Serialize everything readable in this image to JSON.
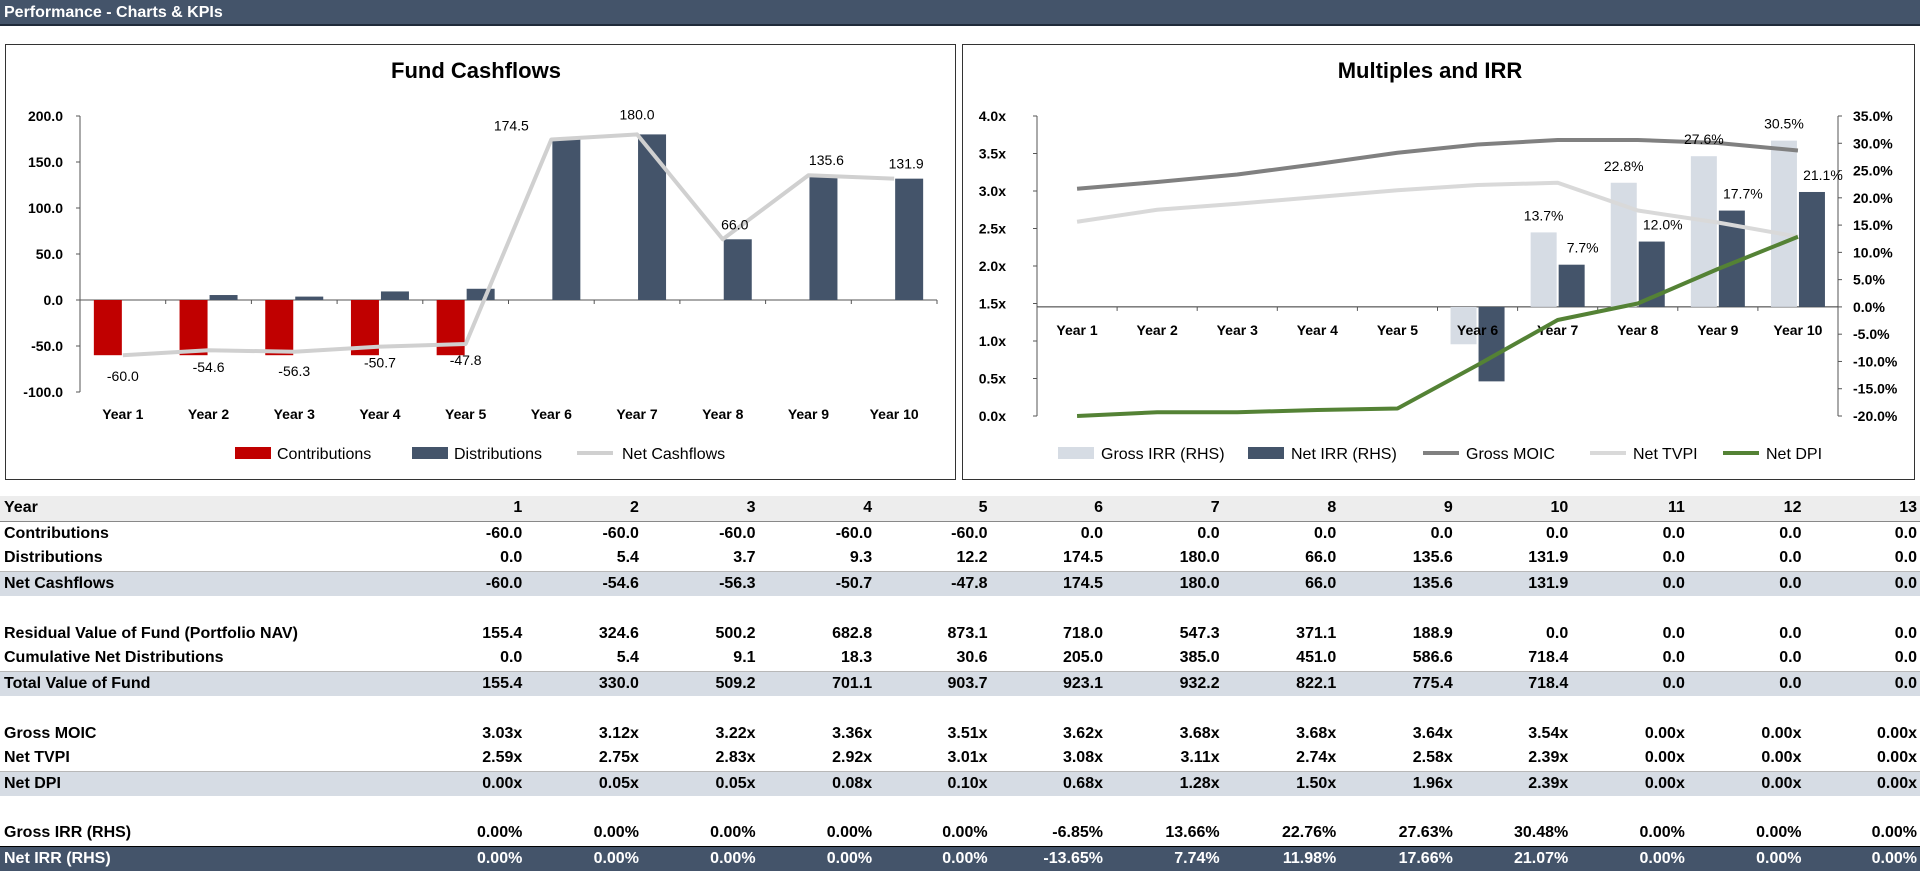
{
  "window": {
    "title": "Performance - Charts & KPIs"
  },
  "colors": {
    "header_bg": "#44546a",
    "contributions": "#c00000",
    "distributions": "#44546a",
    "net_cashflows": "#d0d0d0",
    "gross_irr": "#d6dce4",
    "net_irr": "#44546a",
    "gross_moic": "#808080",
    "net_tvpi": "#d9d9d9",
    "net_dpi": "#548235",
    "shade_row": "#d6dce4"
  },
  "chart_data": [
    {
      "type": "bar",
      "title": "Fund Cashflows",
      "categories": [
        "Year 1",
        "Year 2",
        "Year 3",
        "Year 4",
        "Year 5",
        "Year 6",
        "Year 7",
        "Year 8",
        "Year 9",
        "Year 10"
      ],
      "ylim": [
        -100,
        200
      ],
      "yticks": [
        "-100.0",
        "-50.0",
        "0.0",
        "50.0",
        "100.0",
        "150.0",
        "200.0"
      ],
      "series": [
        {
          "name": "Contributions",
          "kind": "bar",
          "values": [
            -60,
            -60,
            -60,
            -60,
            -60,
            0,
            0,
            0,
            0,
            0
          ]
        },
        {
          "name": "Distributions",
          "kind": "bar",
          "values": [
            0,
            5.4,
            3.7,
            9.3,
            12.2,
            174.5,
            180,
            66,
            135.6,
            131.9
          ]
        },
        {
          "name": "Net Cashflows",
          "kind": "line",
          "values": [
            -60,
            -54.6,
            -56.3,
            -50.7,
            -47.8,
            174.5,
            180,
            66,
            135.6,
            131.9
          ]
        }
      ],
      "data_labels": [
        "-60.0",
        "-54.6",
        "-56.3",
        "-50.7",
        "-47.8",
        "174.5",
        "180.0",
        "66.0",
        "135.6",
        "131.9"
      ],
      "legend": "bottom",
      "grid": false
    },
    {
      "type": "bar",
      "title": "Multiples and IRR",
      "categories": [
        "Year 1",
        "Year 2",
        "Year 3",
        "Year 4",
        "Year 5",
        "Year 6",
        "Year 7",
        "Year 8",
        "Year 9",
        "Year 10"
      ],
      "ylim_left": [
        0,
        4
      ],
      "ylim_right": [
        -0.2,
        0.35
      ],
      "yticks_left": [
        "0.0x",
        "0.5x",
        "1.0x",
        "1.5x",
        "2.0x",
        "2.5x",
        "3.0x",
        "3.5x",
        "4.0x"
      ],
      "yticks_right": [
        "-20.0%",
        "-15.0%",
        "-10.0%",
        "-5.0%",
        "0.0%",
        "5.0%",
        "10.0%",
        "15.0%",
        "20.0%",
        "25.0%",
        "30.0%",
        "35.0%"
      ],
      "series": [
        {
          "name": "Gross IRR (RHS)",
          "kind": "bar",
          "axis": "right",
          "values": [
            0,
            0,
            0,
            0,
            0,
            -0.0685,
            0.1366,
            0.2276,
            0.2763,
            0.3048
          ]
        },
        {
          "name": "Net IRR (RHS)",
          "kind": "bar",
          "axis": "right",
          "values": [
            0,
            0,
            0,
            0,
            0,
            -0.1365,
            0.0774,
            0.1198,
            0.1766,
            0.2107
          ]
        },
        {
          "name": "Gross MOIC",
          "kind": "line",
          "axis": "left",
          "values": [
            3.03,
            3.12,
            3.22,
            3.36,
            3.51,
            3.62,
            3.68,
            3.68,
            3.64,
            3.54
          ]
        },
        {
          "name": "Net TVPI",
          "kind": "line",
          "axis": "left",
          "values": [
            2.59,
            2.75,
            2.83,
            2.92,
            3.01,
            3.08,
            3.11,
            2.74,
            2.58,
            2.39
          ]
        },
        {
          "name": "Net DPI",
          "kind": "line",
          "axis": "left",
          "values": [
            0,
            0.05,
            0.05,
            0.08,
            0.1,
            0.68,
            1.28,
            1.5,
            1.96,
            2.39
          ]
        }
      ],
      "gross_irr_labels": [
        "",
        "",
        "",
        "",
        "",
        "",
        "13.7%",
        "22.8%",
        "27.6%",
        "30.5%"
      ],
      "net_irr_labels": [
        "",
        "",
        "",
        "",
        "",
        "",
        "7.7%",
        "12.0%",
        "17.7%",
        "21.1%"
      ],
      "legend": "bottom",
      "grid": false
    }
  ],
  "table": {
    "header": [
      "Year",
      "1",
      "2",
      "3",
      "4",
      "5",
      "6",
      "7",
      "8",
      "9",
      "10",
      "11",
      "12",
      "13"
    ],
    "rows": [
      {
        "style": "bold",
        "cells": [
          "Contributions",
          "-60.0",
          "-60.0",
          "-60.0",
          "-60.0",
          "-60.0",
          "0.0",
          "0.0",
          "0.0",
          "0.0",
          "0.0",
          "0.0",
          "0.0",
          "0.0"
        ]
      },
      {
        "style": "bold",
        "cells": [
          "Distributions",
          "0.0",
          "5.4",
          "3.7",
          "9.3",
          "12.2",
          "174.5",
          "180.0",
          "66.0",
          "135.6",
          "131.9",
          "0.0",
          "0.0",
          "0.0"
        ]
      },
      {
        "style": "shade",
        "cells": [
          "Net Cashflows",
          "-60.0",
          "-54.6",
          "-56.3",
          "-50.7",
          "-47.8",
          "174.5",
          "180.0",
          "66.0",
          "135.6",
          "131.9",
          "0.0",
          "0.0",
          "0.0"
        ]
      },
      {
        "style": "gap",
        "cells": []
      },
      {
        "style": "bold",
        "cells": [
          "Residual Value of Fund (Portfolio NAV)",
          "155.4",
          "324.6",
          "500.2",
          "682.8",
          "873.1",
          "718.0",
          "547.3",
          "371.1",
          "188.9",
          "0.0",
          "0.0",
          "0.0",
          "0.0"
        ]
      },
      {
        "style": "bold",
        "cells": [
          "Cumulative Net Distributions",
          "0.0",
          "5.4",
          "9.1",
          "18.3",
          "30.6",
          "205.0",
          "385.0",
          "451.0",
          "586.6",
          "718.4",
          "0.0",
          "0.0",
          "0.0"
        ]
      },
      {
        "style": "shade",
        "cells": [
          "Total Value of Fund",
          "155.4",
          "330.0",
          "509.2",
          "701.1",
          "903.7",
          "923.1",
          "932.2",
          "822.1",
          "775.4",
          "718.4",
          "0.0",
          "0.0",
          "0.0"
        ]
      },
      {
        "style": "gap",
        "cells": []
      },
      {
        "style": "bold",
        "cells": [
          "Gross MOIC",
          "3.03x",
          "3.12x",
          "3.22x",
          "3.36x",
          "3.51x",
          "3.62x",
          "3.68x",
          "3.68x",
          "3.64x",
          "3.54x",
          "0.00x",
          "0.00x",
          "0.00x"
        ]
      },
      {
        "style": "bold",
        "cells": [
          "Net TVPI",
          "2.59x",
          "2.75x",
          "2.83x",
          "2.92x",
          "3.01x",
          "3.08x",
          "3.11x",
          "2.74x",
          "2.58x",
          "2.39x",
          "0.00x",
          "0.00x",
          "0.00x"
        ]
      },
      {
        "style": "shade",
        "cells": [
          "Net DPI",
          "0.00x",
          "0.05x",
          "0.05x",
          "0.08x",
          "0.10x",
          "0.68x",
          "1.28x",
          "1.50x",
          "1.96x",
          "2.39x",
          "0.00x",
          "0.00x",
          "0.00x"
        ]
      },
      {
        "style": "gap",
        "cells": []
      },
      {
        "style": "bold",
        "cells": [
          "Gross IRR (RHS)",
          "0.00%",
          "0.00%",
          "0.00%",
          "0.00%",
          "0.00%",
          "-6.85%",
          "13.66%",
          "22.76%",
          "27.63%",
          "30.48%",
          "0.00%",
          "0.00%",
          "0.00%"
        ]
      },
      {
        "style": "dark",
        "cells": [
          "Net IRR (RHS)",
          "0.00%",
          "0.00%",
          "0.00%",
          "0.00%",
          "0.00%",
          "-13.65%",
          "7.74%",
          "11.98%",
          "17.66%",
          "21.07%",
          "0.00%",
          "0.00%",
          "0.00%"
        ]
      }
    ]
  }
}
